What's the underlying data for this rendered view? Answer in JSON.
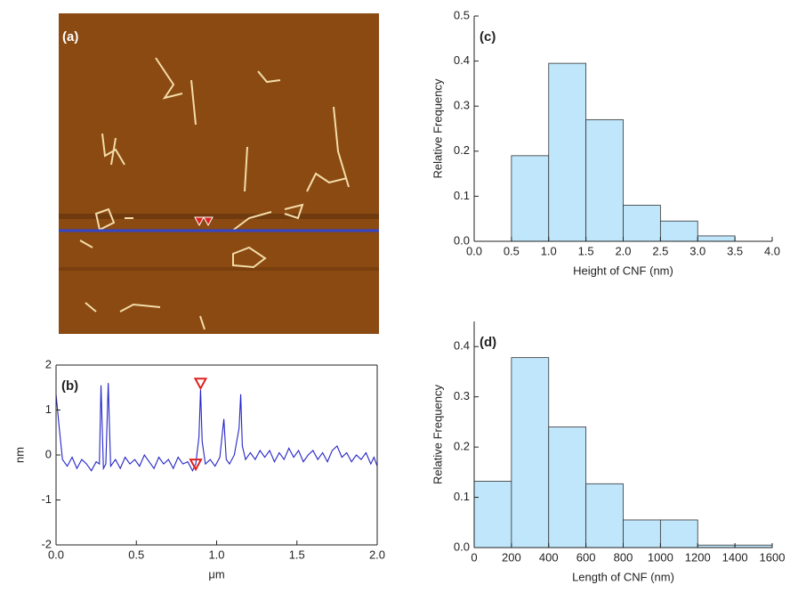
{
  "image_panel": {
    "label": "(a)"
  },
  "chart_data": [
    {
      "type": "line",
      "title": "(b)",
      "xlabel": "μm",
      "ylabel": "nm",
      "color": "#2424c8",
      "x": [
        0.0,
        0.02,
        0.04,
        0.07,
        0.1,
        0.13,
        0.16,
        0.19,
        0.22,
        0.25,
        0.27,
        0.28,
        0.295,
        0.31,
        0.325,
        0.34,
        0.37,
        0.4,
        0.43,
        0.46,
        0.49,
        0.52,
        0.55,
        0.58,
        0.61,
        0.64,
        0.67,
        0.7,
        0.73,
        0.76,
        0.79,
        0.82,
        0.85,
        0.87,
        0.89,
        0.9,
        0.91,
        0.93,
        0.96,
        0.99,
        1.02,
        1.045,
        1.06,
        1.08,
        1.11,
        1.14,
        1.15,
        1.16,
        1.18,
        1.21,
        1.24,
        1.27,
        1.3,
        1.33,
        1.36,
        1.39,
        1.42,
        1.45,
        1.48,
        1.51,
        1.54,
        1.57,
        1.6,
        1.63,
        1.66,
        1.69,
        1.72,
        1.75,
        1.78,
        1.81,
        1.84,
        1.87,
        1.9,
        1.93,
        1.96,
        1.98,
        2.0
      ],
      "values": [
        1.35,
        0.6,
        -0.1,
        -0.25,
        -0.05,
        -0.3,
        -0.1,
        -0.2,
        -0.35,
        -0.15,
        -0.2,
        1.55,
        -0.3,
        -0.2,
        1.6,
        -0.25,
        -0.1,
        -0.3,
        -0.05,
        -0.2,
        -0.1,
        -0.25,
        0.0,
        -0.15,
        -0.3,
        -0.05,
        -0.2,
        -0.1,
        -0.3,
        -0.05,
        -0.2,
        -0.15,
        -0.35,
        -0.2,
        0.4,
        1.45,
        0.3,
        -0.2,
        -0.1,
        -0.25,
        -0.05,
        0.8,
        -0.1,
        -0.2,
        0.0,
        0.6,
        1.35,
        0.2,
        -0.1,
        0.05,
        -0.1,
        0.1,
        -0.05,
        0.1,
        -0.15,
        0.05,
        -0.1,
        0.15,
        -0.05,
        0.1,
        -0.15,
        0.0,
        0.1,
        -0.1,
        0.05,
        -0.15,
        0.1,
        0.2,
        -0.05,
        0.05,
        -0.15,
        0.0,
        -0.1,
        0.05,
        -0.2,
        -0.05,
        -0.25
      ],
      "markers": {
        "x": [
          0.9,
          0.87
        ],
        "y": [
          1.6,
          -0.2
        ],
        "color": "#e02020"
      },
      "xlim": [
        0,
        2
      ],
      "xticks": [
        {
          "value": 0,
          "label": "0.0"
        },
        0.5,
        {
          "value": 1,
          "label": "1.0"
        },
        1.5,
        {
          "value": 2,
          "label": "2.0"
        }
      ],
      "ylim": [
        -2,
        2
      ],
      "yticks": [
        -2,
        -1,
        0,
        1,
        2
      ]
    },
    {
      "type": "histogram",
      "title": "(c)",
      "xlabel": "Height of CNF (nm)",
      "ylabel": "Relative Frequency",
      "color": "#bfe6fb",
      "bins": [
        0.5,
        1.0,
        1.5,
        2.0,
        2.5,
        3.0,
        3.5
      ],
      "values": [
        0.19,
        0.395,
        0.27,
        0.08,
        0.045,
        0.012
      ],
      "xlim": [
        0,
        4
      ],
      "xticks": [
        {
          "value": 0,
          "label": "0.0"
        },
        0.5,
        {
          "value": 1,
          "label": "1.0"
        },
        1.5,
        {
          "value": 2,
          "label": "2.0"
        },
        2.5,
        {
          "value": 3,
          "label": "3.0"
        },
        3.5,
        {
          "value": 4,
          "label": "4.0"
        }
      ],
      "ylim": [
        0,
        0.5
      ],
      "yticks": [
        {
          "value": 0,
          "label": "0.0"
        },
        0.1,
        0.2,
        0.3,
        0.4,
        0.5
      ]
    },
    {
      "type": "histogram",
      "title": "(d)",
      "xlabel": "Length of CNF (nm)",
      "ylabel": "Relative Frequency",
      "color": "#bfe6fb",
      "bins": [
        0,
        200,
        400,
        600,
        800,
        1000,
        1200,
        1400,
        1600
      ],
      "values": [
        0.132,
        0.378,
        0.24,
        0.127,
        0.055,
        0.055,
        0.005,
        0.005
      ],
      "xlim": [
        0,
        1600
      ],
      "xticks": [
        0,
        200,
        400,
        600,
        800,
        1000,
        1200,
        1400,
        1600
      ],
      "ylim": [
        0,
        0.45
      ],
      "yticks": [
        {
          "value": 0,
          "label": "0.0"
        },
        0.1,
        0.2,
        0.3,
        0.4
      ]
    }
  ]
}
